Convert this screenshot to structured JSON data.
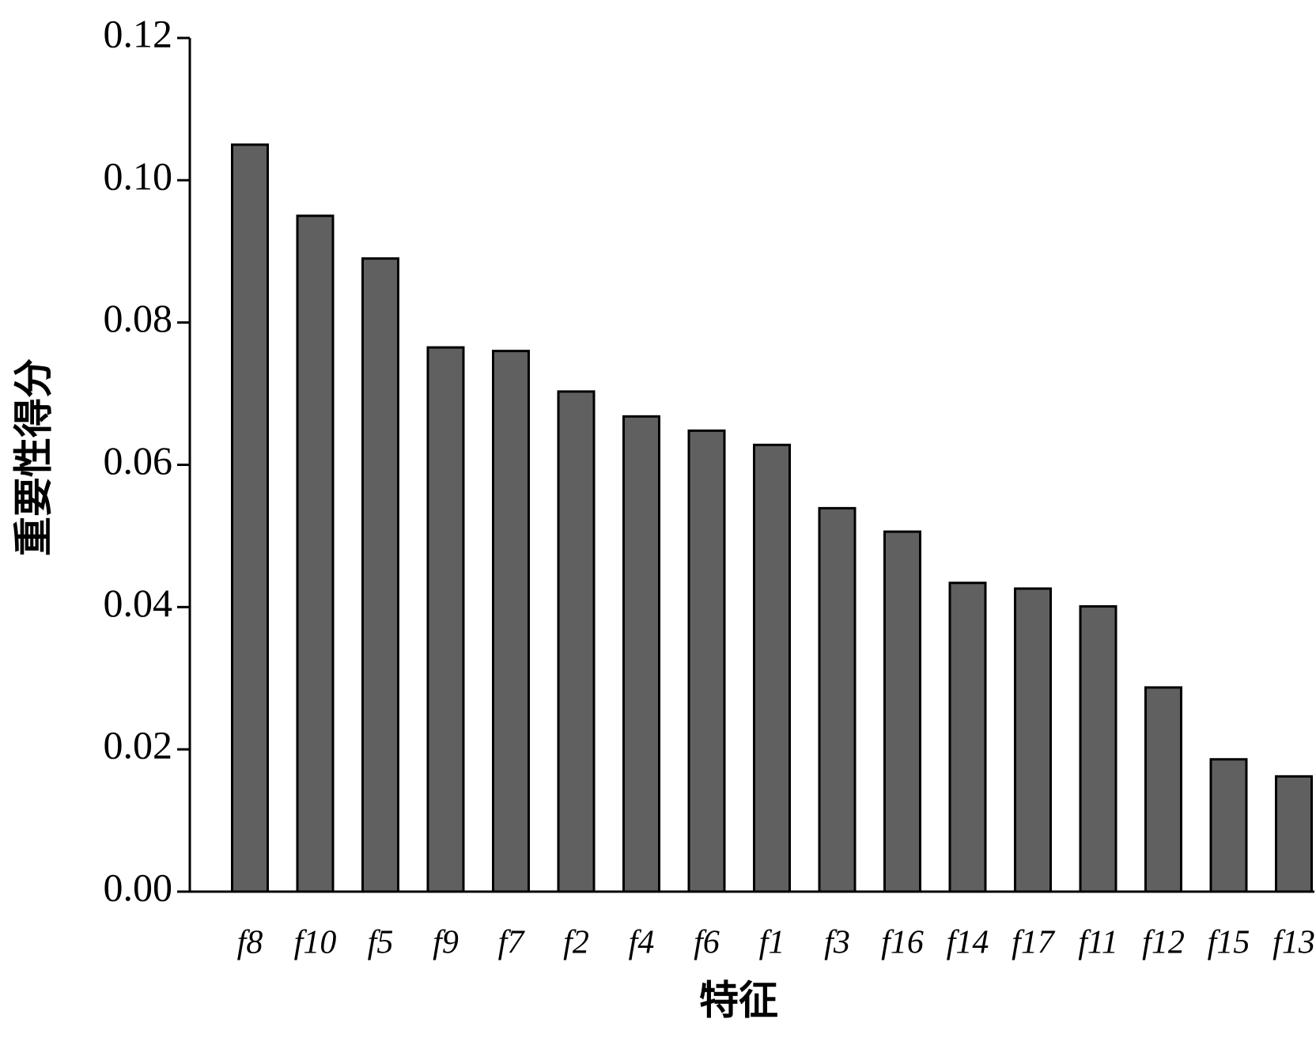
{
  "chart_data": {
    "type": "bar",
    "x_label": "特征",
    "y_label": "重要性得分",
    "categories": [
      "f8",
      "f10",
      "f5",
      "f9",
      "f7",
      "f2",
      "f4",
      "f6",
      "f1",
      "f3",
      "f16",
      "f14",
      "f17",
      "f11",
      "f12",
      "f15",
      "f13"
    ],
    "values": [
      0.105,
      0.095,
      0.089,
      0.0765,
      0.076,
      0.0703,
      0.0668,
      0.0648,
      0.0628,
      0.0539,
      0.0506,
      0.0434,
      0.0426,
      0.0401,
      0.0287,
      0.0186,
      0.0162
    ],
    "color": "#606060",
    "ylim": [
      0,
      0.12
    ],
    "yticks": [
      {
        "value": 0,
        "label": "0.00"
      },
      0.02,
      0.04,
      0.06,
      0.08,
      {
        "value": 0.1,
        "label": "0.10"
      },
      0.12
    ]
  }
}
